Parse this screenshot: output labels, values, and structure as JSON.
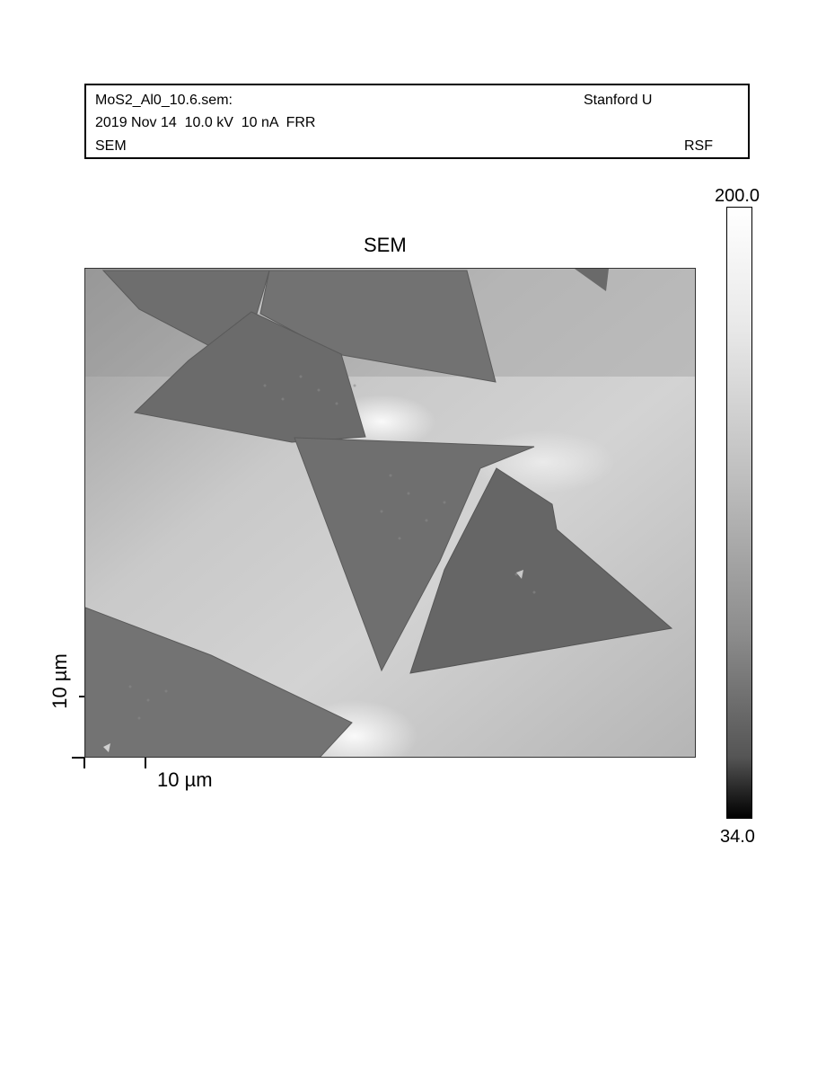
{
  "header": {
    "filename": "MoS2_Al0_10.6.sem:",
    "institution": "Stanford U",
    "acquisition": "2019 Nov 14  10.0 kV  10 nA  FRR",
    "mode": "SEM",
    "code": "RSF"
  },
  "image": {
    "title": "SEM"
  },
  "scale": {
    "x_label": "10 µm",
    "y_label": "10 µm"
  },
  "colorbar": {
    "max": "200.0",
    "min": "34.0"
  }
}
